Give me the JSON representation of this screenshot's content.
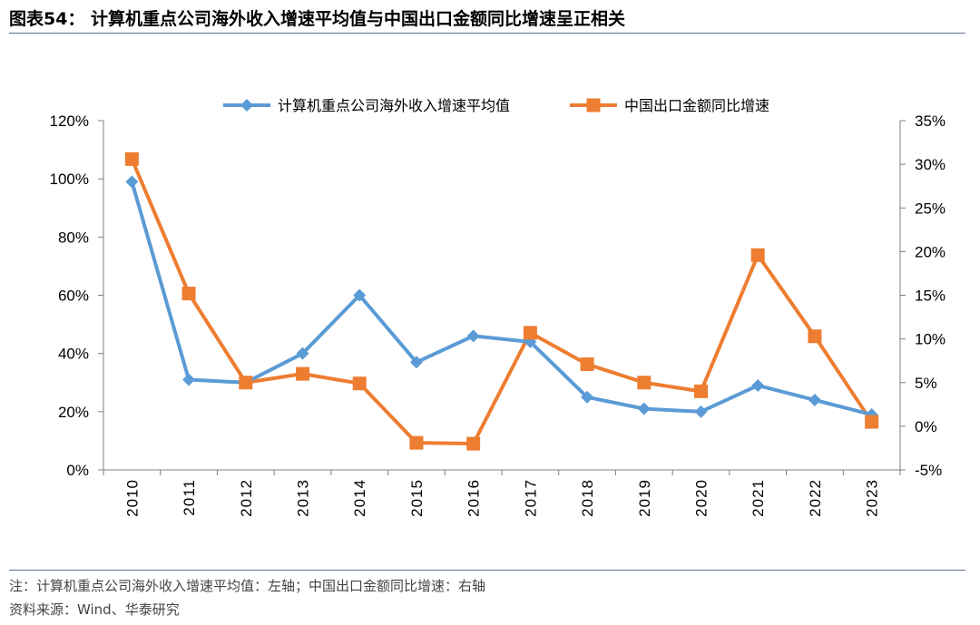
{
  "title": "图表54：  计算机重点公司海外收入增速平均值与中国出口金额同比增速呈正相关",
  "note": "注：计算机重点公司海外收入增速平均值：左轴；中国出口金额同比增速：右轴",
  "source": "资料来源：Wind、华泰研究",
  "colors": {
    "series1": "#5B9BD5",
    "series2": "#ED7D31",
    "rule": "#5b6f8c"
  },
  "chart_data": {
    "type": "line",
    "x": [
      "2010",
      "2011",
      "2012",
      "2013",
      "2014",
      "2015",
      "2016",
      "2017",
      "2018",
      "2019",
      "2020",
      "2021",
      "2022",
      "2023"
    ],
    "series": [
      {
        "name": "计算机重点公司海外收入增速平均值",
        "axis": "left",
        "marker": "diamond",
        "values": [
          99,
          31,
          30,
          40,
          60,
          37,
          46,
          44,
          25,
          21,
          20,
          29,
          24,
          19
        ]
      },
      {
        "name": "中国出口金额同比增速",
        "axis": "right",
        "marker": "square",
        "values": [
          30.6,
          15.2,
          5.0,
          6.0,
          4.9,
          -1.9,
          -2.0,
          10.7,
          7.1,
          5.0,
          4.0,
          19.6,
          10.3,
          0.5
        ]
      }
    ],
    "y_left": {
      "ylim": [
        0,
        120
      ],
      "ticks": [
        "0%",
        "20%",
        "40%",
        "60%",
        "80%",
        "100%",
        "120%"
      ]
    },
    "y_right": {
      "ylim": [
        -5,
        35
      ],
      "ticks": [
        "-5%",
        "0%",
        "5%",
        "10%",
        "15%",
        "20%",
        "25%",
        "30%",
        "35%"
      ]
    },
    "legend": "top-center",
    "grid": false
  }
}
